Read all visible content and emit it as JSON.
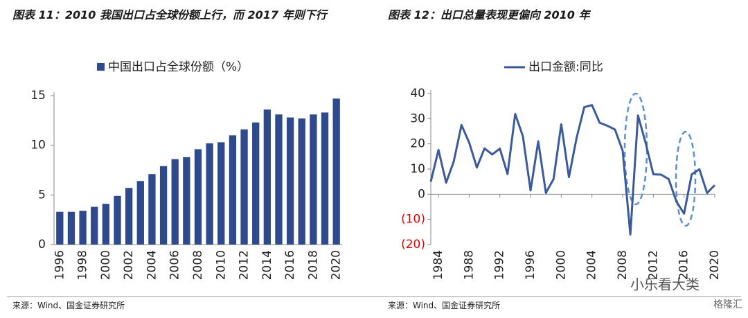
{
  "chart_data": [
    {
      "type": "bar",
      "title": "图表 11：2010 我国出口占全球份额上行，而 2017 年则下行",
      "categories": [
        "1996",
        null,
        "1998",
        null,
        "2000",
        null,
        "2002",
        null,
        "2004",
        null,
        "2006",
        null,
        "2008",
        null,
        "2010",
        null,
        "2012",
        null,
        "2014",
        null,
        "2016",
        null,
        "2018",
        null,
        "2020"
      ],
      "series": [
        {
          "name": "中国出口占全球份额（%）",
          "color": "#2e4a8c",
          "values": [
            3.3,
            3.3,
            3.4,
            3.8,
            4.1,
            4.9,
            5.7,
            6.4,
            7.1,
            7.9,
            8.6,
            8.8,
            9.6,
            10.2,
            10.3,
            11.0,
            11.6,
            12.3,
            13.6,
            13.1,
            12.8,
            12.7,
            13.1,
            13.3,
            14.7
          ]
        }
      ],
      "ylim": [
        0,
        15
      ],
      "yticks": [
        0,
        5,
        10,
        15
      ],
      "source": "来源：Wind、国金证券研究所"
    },
    {
      "type": "line",
      "title": "图表 12：出口总量表现更偏向 2010 年",
      "x": [
        1983,
        1984,
        1985,
        1986,
        1987,
        1988,
        1989,
        1990,
        1991,
        1992,
        1993,
        1994,
        1995,
        1996,
        1997,
        1998,
        1999,
        2000,
        2001,
        2002,
        2003,
        2004,
        2005,
        2006,
        2007,
        2008,
        2009,
        2010,
        2011,
        2012,
        2013,
        2014,
        2015,
        2016,
        2017,
        2018,
        2019,
        2020
      ],
      "series": [
        {
          "name": "出口金额:同比",
          "color": "#3a5a9a",
          "values": [
            5,
            17.6,
            4.6,
            13.1,
            27.5,
            20.5,
            10.6,
            18.2,
            15.8,
            18.1,
            8,
            31.9,
            23,
            1.5,
            21,
            0.5,
            6.1,
            27.8,
            6.8,
            22.4,
            34.6,
            35.4,
            28.4,
            27.2,
            25.7,
            17.3,
            -16,
            31.3,
            20.3,
            7.9,
            7.8,
            6,
            -2.9,
            -7.7,
            7.9,
            9.9,
            0.5,
            3.6
          ]
        }
      ],
      "xlim": [
        1983,
        2020
      ],
      "xticks": [
        1984,
        1988,
        1992,
        1996,
        2000,
        2004,
        2008,
        2012,
        2016,
        2020
      ],
      "ylim": [
        -20,
        40
      ],
      "yticks": [
        {
          "value": -20,
          "label": "(20)"
        },
        {
          "value": -10,
          "label": "(10)"
        },
        0,
        10,
        20,
        30,
        40
      ],
      "negative_tick_color": "#e00000",
      "source": "来源：Wind、国金证券研究所"
    }
  ],
  "watermark": "小乐看大类",
  "logo": "格隆汇"
}
